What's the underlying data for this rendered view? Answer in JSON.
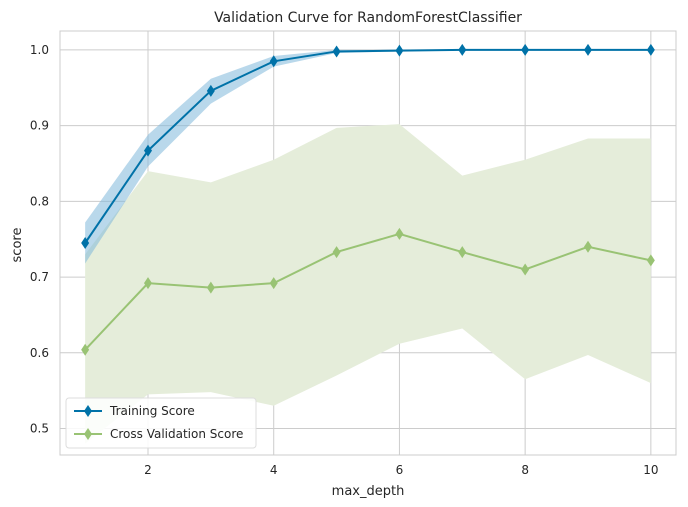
{
  "chart_data": {
    "type": "line",
    "title": "Validation Curve for RandomForestClassifier",
    "xlabel": "max_depth",
    "ylabel": "score",
    "xlim": [
      0.6,
      10.4
    ],
    "ylim": [
      0.465,
      1.025
    ],
    "xticks": [
      2,
      4,
      6,
      8,
      10
    ],
    "yticks": [
      0.5,
      0.6,
      0.7,
      0.8,
      0.9,
      1.0
    ],
    "ytick_labels": [
      "0.5",
      "0.6",
      "0.7",
      "0.8",
      "0.9",
      "1.0"
    ],
    "grid": true,
    "legend_position": "lower-left",
    "x": [
      1,
      2,
      3,
      4,
      5,
      6,
      7,
      8,
      9,
      10
    ],
    "series": [
      {
        "name": "Training Score",
        "color": "#0072a8",
        "band_color": "#7fb8da",
        "values": [
          0.745,
          0.867,
          0.946,
          0.985,
          0.998,
          0.999,
          1.0,
          1.0,
          1.0,
          1.0
        ],
        "upper": [
          0.772,
          0.888,
          0.962,
          0.992,
          1.0,
          1.0,
          1.0,
          1.0,
          1.0,
          1.0
        ],
        "lower": [
          0.718,
          0.846,
          0.929,
          0.978,
          0.996,
          0.998,
          1.0,
          1.0,
          1.0,
          1.0
        ]
      },
      {
        "name": "Cross Validation Score",
        "color": "#99c374",
        "band_color": "#e5edda",
        "values": [
          0.604,
          0.692,
          0.686,
          0.692,
          0.733,
          0.757,
          0.733,
          0.71,
          0.74,
          0.722
        ],
        "upper": [
          0.73,
          0.84,
          0.825,
          0.855,
          0.897,
          0.902,
          0.834,
          0.855,
          0.883,
          0.883
        ],
        "lower": [
          0.48,
          0.545,
          0.548,
          0.53,
          0.57,
          0.612,
          0.632,
          0.565,
          0.597,
          0.56
        ]
      }
    ]
  }
}
